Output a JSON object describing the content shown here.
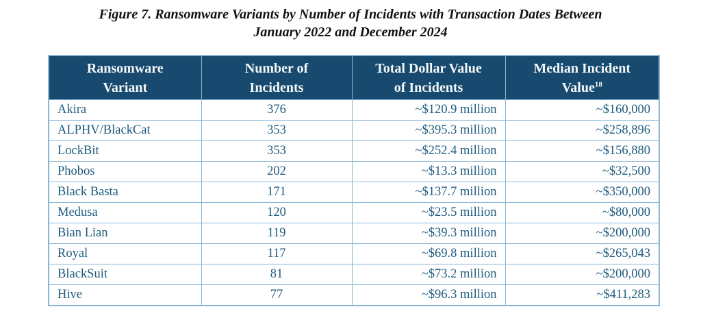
{
  "figure": {
    "title_line1": "Figure 7. Ransomware Variants by Number of Incidents with Transaction Dates Between",
    "title_line2": "January 2022 and December 2024"
  },
  "table": {
    "columns": [
      {
        "line1": "Ransomware",
        "line2": "Variant"
      },
      {
        "line1": "Number of",
        "line2": "Incidents"
      },
      {
        "line1": "Total Dollar Value",
        "line2": "of Incidents"
      },
      {
        "line1": "Median Incident",
        "line2": "Value",
        "sup": "18"
      }
    ],
    "rows": [
      [
        "Akira",
        "376",
        "~$120.9 million",
        "~$160,000"
      ],
      [
        "ALPHV/BlackCat",
        "353",
        "~$395.3 million",
        "~$258,896"
      ],
      [
        "LockBit",
        "353",
        "~$252.4 million",
        "~$156,880"
      ],
      [
        "Phobos",
        "202",
        "~$13.3 million",
        "~$32,500"
      ],
      [
        "Black Basta",
        "171",
        "~$137.7 million",
        "~$350,000"
      ],
      [
        "Medusa",
        "120",
        "~$23.5 million",
        "~$80,000"
      ],
      [
        "Bian Lian",
        "119",
        "~$39.3 million",
        "~$200,000"
      ],
      [
        "Royal",
        "117",
        "~$69.8 million",
        "~$265,043"
      ],
      [
        "BlackSuit",
        "81",
        "~$73.2 million",
        "~$200,000"
      ],
      [
        "Hive",
        "77",
        "~$96.3 million",
        "~$411,283"
      ]
    ]
  },
  "colors": {
    "header_bg": "#174a6e",
    "header_text": "#f5f8fa",
    "cell_text": "#1e5b7e",
    "border": "#8ab6d6",
    "row_bg": "#ffffff"
  }
}
